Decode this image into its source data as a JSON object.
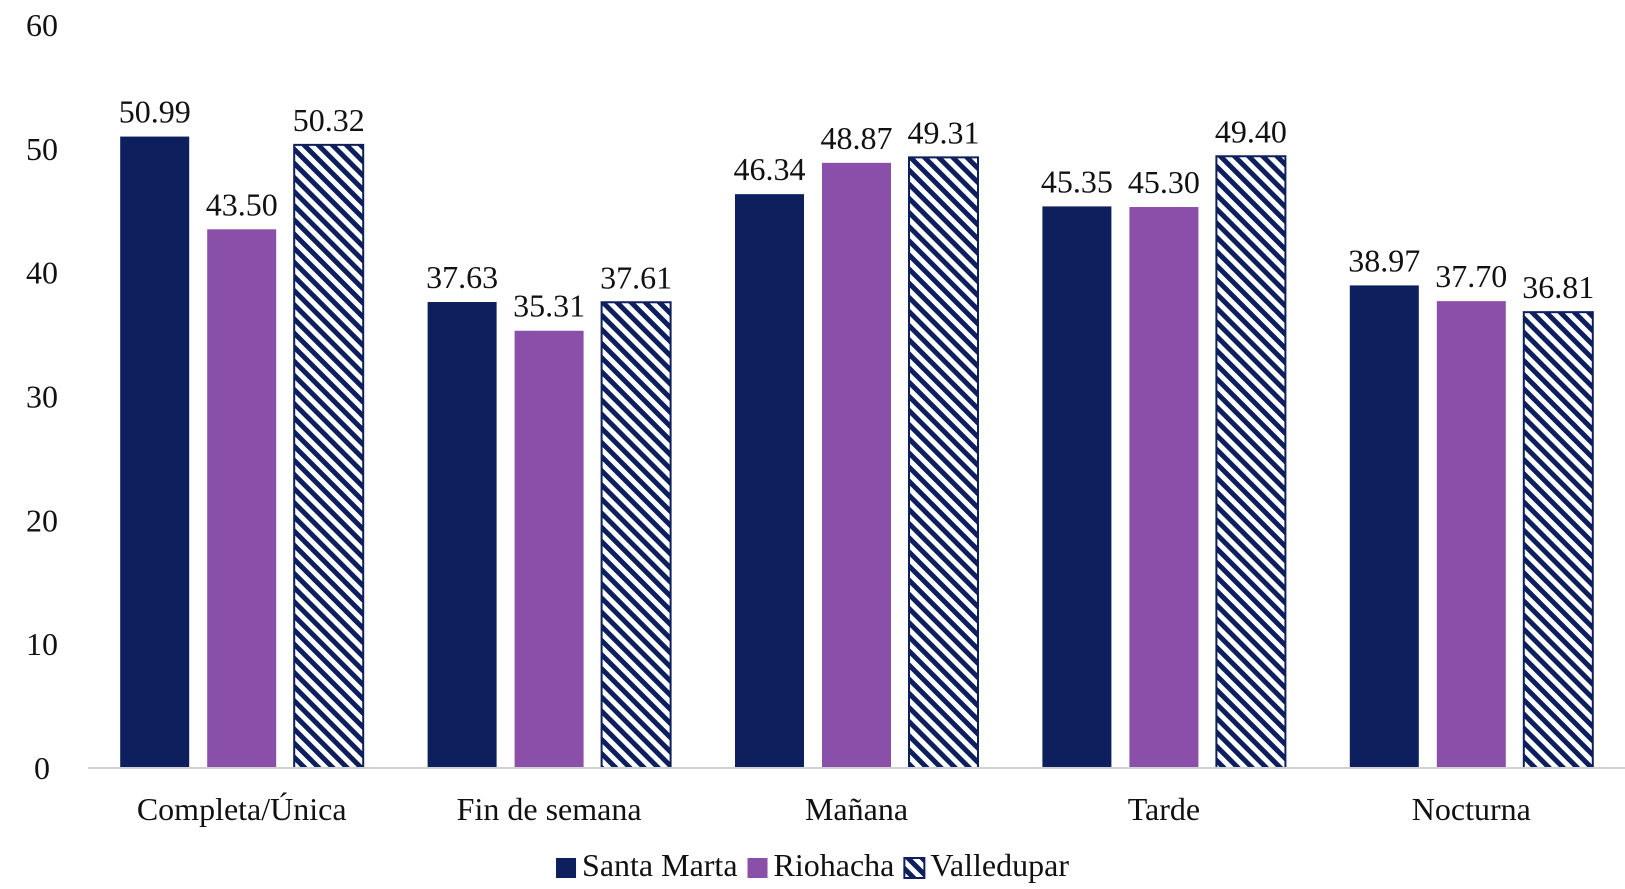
{
  "chart_data": {
    "type": "bar",
    "categories": [
      "Completa/Única",
      "Fin de semana",
      "Mañana",
      "Tarde",
      "Nocturna"
    ],
    "series": [
      {
        "name": "Santa Marta",
        "values": [
          50.99,
          37.63,
          46.34,
          45.35,
          38.97
        ],
        "color": "#0d1f5c",
        "pattern": "solid"
      },
      {
        "name": "Riohacha",
        "values": [
          43.5,
          35.31,
          48.87,
          45.3,
          37.7
        ],
        "color": "#8a4fa8",
        "pattern": "solid"
      },
      {
        "name": "Valledupar",
        "values": [
          50.32,
          37.61,
          49.31,
          49.4,
          36.81
        ],
        "color": "#0d1f5c",
        "pattern": "diagonal-stripes"
      }
    ],
    "data_labels": [
      [
        "50.99",
        "37.63",
        "46.34",
        "45.35",
        "38.97"
      ],
      [
        "43.50",
        "35.31",
        "48.87",
        "45.30",
        "37.70"
      ],
      [
        "50.32",
        "37.61",
        "49.31",
        "49.40",
        "36.81"
      ]
    ],
    "ylim": [
      0,
      60
    ],
    "yticks": [
      0,
      10,
      20,
      30,
      40,
      50,
      60
    ],
    "ytick_labels": [
      "0",
      "10",
      "20",
      "30",
      "40",
      "50",
      "60"
    ],
    "grid": false,
    "legend_position": "bottom"
  }
}
